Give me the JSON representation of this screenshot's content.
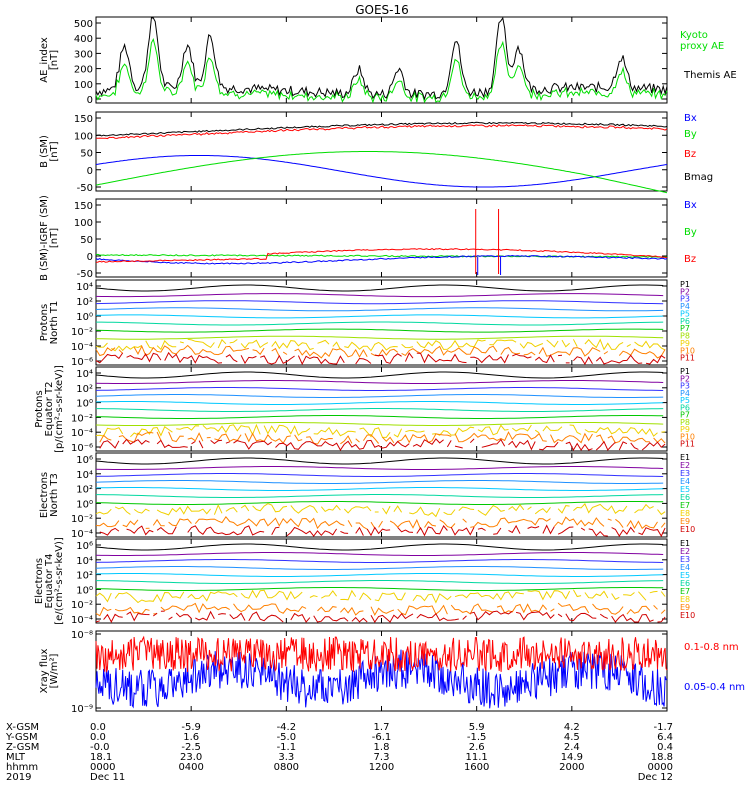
{
  "title": "GOES-16",
  "colors": {
    "black": "#000000",
    "red": "#ff0000",
    "green": "#00dd00",
    "blue": "#0000ff",
    "p": [
      "#000000",
      "#8000a0",
      "#3030ff",
      "#1e90ff",
      "#00c8ff",
      "#00d8a0",
      "#00c800",
      "#a0e000",
      "#f0d000",
      "#ff8000",
      "#d00000"
    ]
  },
  "chart_data": [
    {
      "type": "line",
      "id": "ae",
      "ylabel": "AE_index\n[nT]",
      "ylim": [
        0,
        500
      ],
      "yticks": [
        "500",
        "400",
        "300",
        "200",
        "100",
        "0"
      ],
      "series": [
        {
          "name": "Kyoto\nproxy AE",
          "color": "green"
        },
        {
          "name": "Themis AE",
          "color": "black"
        }
      ]
    },
    {
      "type": "line",
      "id": "bsm",
      "ylabel": "B (SM)\n[nT]",
      "ylim": [
        -50,
        150
      ],
      "yticks": [
        "150",
        "100",
        "50",
        "0",
        "-50"
      ],
      "series": [
        {
          "name": "Bx",
          "color": "blue"
        },
        {
          "name": "By",
          "color": "green"
        },
        {
          "name": "Bz",
          "color": "red"
        },
        {
          "name": "Bmag",
          "color": "black"
        }
      ]
    },
    {
      "type": "line",
      "id": "bigrf",
      "ylabel": "B (SM)-IGRF (SM)\n[nT]",
      "ylim": [
        -50,
        150
      ],
      "yticks": [
        "150",
        "100",
        "50",
        "0",
        "-50"
      ],
      "series": [
        {
          "name": "Bx",
          "color": "blue"
        },
        {
          "name": "By",
          "color": "green"
        },
        {
          "name": "Bz",
          "color": "red"
        }
      ]
    },
    {
      "type": "line",
      "id": "pnt1",
      "ylabel": "Protons\nNorth T1",
      "yscale": "log",
      "yticks": [
        "10⁴",
        "10²",
        "10⁰",
        "10⁻²",
        "10⁻⁴",
        "10⁻⁶"
      ],
      "series": [
        {
          "name": "P1"
        },
        {
          "name": "P2"
        },
        {
          "name": "P3"
        },
        {
          "name": "P4"
        },
        {
          "name": "P5"
        },
        {
          "name": "P6"
        },
        {
          "name": "P7"
        },
        {
          "name": "P8"
        },
        {
          "name": "P9"
        },
        {
          "name": "P10"
        },
        {
          "name": "P11"
        }
      ]
    },
    {
      "type": "line",
      "id": "pet2",
      "ylabel": "Protons\nEquator T2\n[p/(cm²-s-sr-keV)]",
      "yscale": "log",
      "yticks": [
        "10⁴",
        "10²",
        "10⁰",
        "10⁻²",
        "10⁻⁴",
        "10⁻⁶"
      ],
      "series": [
        {
          "name": "P1"
        },
        {
          "name": "P2"
        },
        {
          "name": "P3"
        },
        {
          "name": "P4"
        },
        {
          "name": "P5"
        },
        {
          "name": "P6"
        },
        {
          "name": "P7"
        },
        {
          "name": "P8"
        },
        {
          "name": "P9"
        },
        {
          "name": "P10"
        },
        {
          "name": "P11"
        }
      ]
    },
    {
      "type": "line",
      "id": "ent3",
      "ylabel": "Electrons\nNorth T3",
      "yscale": "log",
      "yticks": [
        "10⁶",
        "10⁴",
        "10²",
        "10⁰",
        "10⁻²",
        "10⁻⁴"
      ],
      "series": [
        {
          "name": "E1"
        },
        {
          "name": "E2"
        },
        {
          "name": "E3"
        },
        {
          "name": "E4"
        },
        {
          "name": "E5"
        },
        {
          "name": "E6"
        },
        {
          "name": "E7"
        },
        {
          "name": "E8"
        },
        {
          "name": "E9"
        },
        {
          "name": "E10"
        }
      ]
    },
    {
      "type": "line",
      "id": "eet4",
      "ylabel": "Electrons\nEquator T4\n[e/(cm²-s-sr-keV)]",
      "yscale": "log",
      "yticks": [
        "10⁶",
        "10⁴",
        "10²",
        "10⁰",
        "10⁻²",
        "10⁻⁴"
      ],
      "series": [
        {
          "name": "E1"
        },
        {
          "name": "E2"
        },
        {
          "name": "E3"
        },
        {
          "name": "E4"
        },
        {
          "name": "E5"
        },
        {
          "name": "E6"
        },
        {
          "name": "E7"
        },
        {
          "name": "E8"
        },
        {
          "name": "E9"
        },
        {
          "name": "E10"
        }
      ]
    },
    {
      "type": "line",
      "id": "xray",
      "ylabel": "Xray flux\n[W/m²]",
      "yscale": "log",
      "yticks": [
        "10⁻⁸",
        "10⁻⁹"
      ],
      "series": [
        {
          "name": "0.1-0.8 nm",
          "color": "red"
        },
        {
          "name": "0.05-0.4 nm",
          "color": "blue"
        }
      ]
    }
  ],
  "xaxis": {
    "row_labels": [
      "X-GSM",
      "Y-GSM",
      "Z-GSM",
      "MLT",
      "hhmm",
      "2019"
    ],
    "columns": [
      [
        "0.0",
        "0.0",
        "-0.0",
        "18.1",
        "0000",
        "Dec 11"
      ],
      [
        "-5.9",
        "1.6",
        "-2.5",
        "23.0",
        "0400",
        ""
      ],
      [
        "-4.2",
        "-5.0",
        "-1.1",
        "3.3",
        "0800",
        ""
      ],
      [
        "1.7",
        "-6.1",
        "1.8",
        "7.3",
        "1200",
        ""
      ],
      [
        "5.9",
        "-1.5",
        "2.6",
        "11.1",
        "1600",
        ""
      ],
      [
        "4.2",
        "4.5",
        "2.4",
        "14.9",
        "2000",
        ""
      ],
      [
        "-1.7",
        "6.4",
        "0.4",
        "18.8",
        "0000",
        "Dec 12"
      ]
    ]
  }
}
